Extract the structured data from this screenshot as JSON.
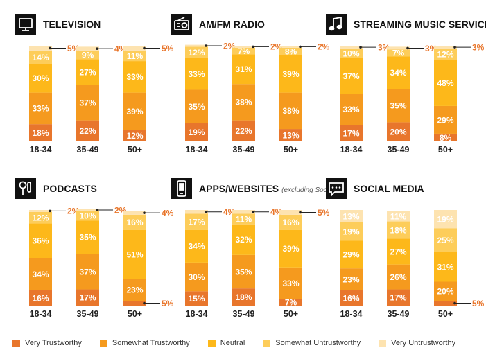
{
  "colors": {
    "Very Trustworthy": "#e8762c",
    "Somewhat Trustworthy": "#f59a1e",
    "Neutral": "#fdb81a",
    "Somewhat Untrustworthy": "#fdcd5a",
    "Very Untrustworthy": "#fde3b0",
    "callout": "#e8762c",
    "text_dark": "#111111"
  },
  "legend": [
    {
      "label": "Very Trustworthy"
    },
    {
      "label": "Somewhat Trustworthy"
    },
    {
      "label": "Neutral"
    },
    {
      "label": "Somewhat Untrustworthy"
    },
    {
      "label": "Very Untrustworthy"
    }
  ],
  "chart_data": [
    {
      "type": "bar",
      "stacked": true,
      "title": "TELEVISION",
      "icon": "tv-icon",
      "categories": [
        "18-34",
        "35-49",
        "50+"
      ],
      "series": [
        {
          "name": "Very Trustworthy",
          "values": [
            18,
            22,
            12
          ]
        },
        {
          "name": "Somewhat Trustworthy",
          "values": [
            33,
            37,
            39
          ]
        },
        {
          "name": "Neutral",
          "values": [
            30,
            27,
            33
          ]
        },
        {
          "name": "Somewhat Untrustworthy",
          "values": [
            14,
            9,
            11
          ]
        },
        {
          "name": "Very Untrustworthy",
          "values": [
            5,
            4,
            5
          ]
        }
      ],
      "value_labels": {
        "Very Trustworthy": [
          "18%",
          "22%",
          "12%"
        ],
        "Somewhat Trustworthy": [
          "33%",
          "37%",
          "39%"
        ],
        "Neutral": [
          "30%",
          "27%",
          "33%"
        ],
        "Somewhat Untrustworthy": [
          "14%",
          "9%",
          "11%"
        ],
        "Very Untrustworthy": [
          "5%",
          "4%",
          "5%"
        ]
      }
    },
    {
      "type": "bar",
      "stacked": true,
      "title": "AM/FM RADIO",
      "icon": "radio-icon",
      "categories": [
        "18-34",
        "35-49",
        "50+"
      ],
      "series": [
        {
          "name": "Very Trustworthy",
          "values": [
            19,
            22,
            13
          ]
        },
        {
          "name": "Somewhat Trustworthy",
          "values": [
            35,
            38,
            38
          ]
        },
        {
          "name": "Neutral",
          "values": [
            33,
            31,
            39
          ]
        },
        {
          "name": "Somewhat Untrustworthy",
          "values": [
            12,
            7,
            8
          ]
        },
        {
          "name": "Very Untrustworthy",
          "values": [
            2,
            2,
            2
          ]
        }
      ],
      "value_labels": {
        "Very Trustworthy": [
          "19%",
          "22%",
          "13%"
        ],
        "Somewhat Trustworthy": [
          "35%",
          "38%",
          "38%"
        ],
        "Neutral": [
          "33%",
          "31%",
          "39%"
        ],
        "Somewhat Untrustworthy": [
          "12%",
          "7%",
          "8%"
        ],
        "Very Untrustworthy": [
          "2%",
          "2%",
          "2%"
        ]
      }
    },
    {
      "type": "bar",
      "stacked": true,
      "title": "STREAMING MUSIC SERVICES",
      "icon": "music-note-icon",
      "categories": [
        "18-34",
        "35-49",
        "50+"
      ],
      "series": [
        {
          "name": "Very Trustworthy",
          "values": [
            17,
            20,
            8
          ]
        },
        {
          "name": "Somewhat Trustworthy",
          "values": [
            33,
            35,
            29
          ]
        },
        {
          "name": "Neutral",
          "values": [
            37,
            34,
            48
          ]
        },
        {
          "name": "Somewhat Untrustworthy",
          "values": [
            10,
            7,
            12
          ]
        },
        {
          "name": "Very Untrustworthy",
          "values": [
            3,
            3,
            3
          ]
        }
      ],
      "value_labels": {
        "Very Trustworthy": [
          "17%",
          "20%",
          "8%"
        ],
        "Somewhat Trustworthy": [
          "33%",
          "35%",
          "29%"
        ],
        "Neutral": [
          "37%",
          "34%",
          "48%"
        ],
        "Somewhat Untrustworthy": [
          "10%",
          "7%",
          "12%"
        ],
        "Very Untrustworthy": [
          "3%",
          "3%",
          "3%"
        ]
      }
    },
    {
      "type": "bar",
      "stacked": true,
      "title": "PODCASTS",
      "icon": "microphone-icon",
      "categories": [
        "18-34",
        "35-49",
        "50+"
      ],
      "series": [
        {
          "name": "Very Trustworthy",
          "values": [
            16,
            17,
            5
          ]
        },
        {
          "name": "Somewhat Trustworthy",
          "values": [
            34,
            37,
            23
          ]
        },
        {
          "name": "Neutral",
          "values": [
            36,
            35,
            51
          ]
        },
        {
          "name": "Somewhat Untrustworthy",
          "values": [
            12,
            10,
            16
          ]
        },
        {
          "name": "Very Untrustworthy",
          "values": [
            2,
            2,
            4
          ]
        }
      ],
      "value_labels": {
        "Very Trustworthy": [
          "16%",
          "17%",
          "5%"
        ],
        "Somewhat Trustworthy": [
          "34%",
          "37%",
          "23%"
        ],
        "Neutral": [
          "36%",
          "35%",
          "51%"
        ],
        "Somewhat Untrustworthy": [
          "12%",
          "10%",
          "16%"
        ],
        "Very Untrustworthy": [
          "2%",
          "2%",
          "4%"
        ]
      }
    },
    {
      "type": "bar",
      "stacked": true,
      "title": "APPS/WEBSITES",
      "subtitle": "(excluding Social)",
      "icon": "phone-app-icon",
      "categories": [
        "18-34",
        "35-49",
        "50+"
      ],
      "series": [
        {
          "name": "Very Trustworthy",
          "values": [
            15,
            18,
            7
          ]
        },
        {
          "name": "Somewhat Trustworthy",
          "values": [
            30,
            35,
            33
          ]
        },
        {
          "name": "Neutral",
          "values": [
            34,
            32,
            39
          ]
        },
        {
          "name": "Somewhat Untrustworthy",
          "values": [
            17,
            11,
            16
          ]
        },
        {
          "name": "Very Untrustworthy",
          "values": [
            4,
            4,
            5
          ]
        }
      ],
      "value_labels": {
        "Very Trustworthy": [
          "15%",
          "18%",
          "7%"
        ],
        "Somewhat Trustworthy": [
          "30%",
          "35%",
          "33%"
        ],
        "Neutral": [
          "34%",
          "32%",
          "39%"
        ],
        "Somewhat Untrustworthy": [
          "17%",
          "11%",
          "16%"
        ],
        "Very Untrustworthy": [
          "4%",
          "4%",
          "5%"
        ]
      }
    },
    {
      "type": "bar",
      "stacked": true,
      "title": "SOCIAL MEDIA",
      "icon": "chat-bubble-icon",
      "categories": [
        "18-34",
        "35-49",
        "50+"
      ],
      "series": [
        {
          "name": "Very Trustworthy",
          "values": [
            16,
            17,
            5
          ]
        },
        {
          "name": "Somewhat Trustworthy",
          "values": [
            23,
            26,
            20
          ]
        },
        {
          "name": "Neutral",
          "values": [
            29,
            27,
            31
          ]
        },
        {
          "name": "Somewhat Untrustworthy",
          "values": [
            19,
            18,
            25
          ]
        },
        {
          "name": "Very Untrustworthy",
          "values": [
            13,
            11,
            19
          ]
        }
      ],
      "value_labels": {
        "Very Trustworthy": [
          "16%",
          "17%",
          "5%"
        ],
        "Somewhat Trustworthy": [
          "23%",
          "26%",
          "20%"
        ],
        "Neutral": [
          "29%",
          "27%",
          "31%"
        ],
        "Somewhat Untrustworthy": [
          "19%",
          "18%",
          "25%"
        ],
        "Very Untrustworthy": [
          "13%",
          "11%",
          "19%"
        ]
      }
    }
  ]
}
